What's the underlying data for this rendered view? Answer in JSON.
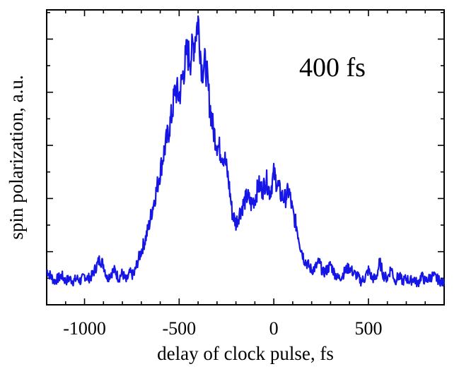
{
  "chart_data": {
    "type": "line",
    "title": "",
    "xlabel": "delay of clock pulse, fs",
    "ylabel": "spin polarization, a.u.",
    "annotation": "400 fs",
    "xlim": [
      -1200,
      900
    ],
    "ylim": [
      0,
      1
    ],
    "x_ticks": [
      -1000,
      -500,
      0,
      500
    ],
    "x_tick_labels": [
      "-1000",
      "-500",
      "0",
      "500"
    ],
    "y_tick_labels_shown": false,
    "grid": false,
    "line_color": "#1515e6",
    "series": [
      {
        "x": [
          -1200,
          -1180,
          -1160,
          -1140,
          -1120,
          -1100,
          -1080,
          -1060,
          -1040,
          -1020,
          -1000,
          -980,
          -960,
          -940,
          -920,
          -900,
          -880,
          -860,
          -840,
          -820,
          -800,
          -780,
          -760,
          -740,
          -720,
          -700,
          -680,
          -660,
          -640,
          -620,
          -600,
          -580,
          -560,
          -540,
          -520,
          -500,
          -480,
          -460,
          -440,
          -420,
          -400,
          -380,
          -360,
          -340,
          -320,
          -300,
          -280,
          -260,
          -240,
          -220,
          -200,
          -180,
          -160,
          -140,
          -120,
          -100,
          -80,
          -60,
          -40,
          -20,
          0,
          20,
          40,
          60,
          80,
          100,
          120,
          140,
          160,
          180,
          200,
          220,
          240,
          260,
          280,
          300,
          320,
          340,
          360,
          380,
          400,
          420,
          440,
          460,
          480,
          500,
          520,
          540,
          560,
          580,
          600,
          620,
          640,
          660,
          680,
          700,
          720,
          740,
          760,
          780,
          800,
          820,
          840,
          860,
          880,
          900
        ],
        "values": [
          0.09,
          0.07,
          0.05,
          0.06,
          0.07,
          0.05,
          0.06,
          0.05,
          0.06,
          0.05,
          0.07,
          0.06,
          0.07,
          0.1,
          0.13,
          0.11,
          0.06,
          0.08,
          0.09,
          0.06,
          0.08,
          0.05,
          0.08,
          0.07,
          0.12,
          0.16,
          0.2,
          0.25,
          0.32,
          0.38,
          0.45,
          0.52,
          0.58,
          0.65,
          0.75,
          0.72,
          0.8,
          0.88,
          0.86,
          0.92,
          1.0,
          0.82,
          0.84,
          0.7,
          0.6,
          0.55,
          0.52,
          0.5,
          0.42,
          0.3,
          0.26,
          0.3,
          0.33,
          0.36,
          0.33,
          0.35,
          0.4,
          0.38,
          0.42,
          0.37,
          0.44,
          0.4,
          0.36,
          0.35,
          0.38,
          0.3,
          0.25,
          0.18,
          0.13,
          0.11,
          0.09,
          0.1,
          0.12,
          0.08,
          0.09,
          0.11,
          0.08,
          0.06,
          0.07,
          0.09,
          0.1,
          0.08,
          0.07,
          0.05,
          0.06,
          0.09,
          0.06,
          0.06,
          0.12,
          0.07,
          0.06,
          0.1,
          0.05,
          0.07,
          0.05,
          0.06,
          0.05,
          0.06,
          0.04,
          0.07,
          0.05,
          0.06,
          0.07,
          0.06,
          0.05,
          0.04
        ]
      }
    ]
  }
}
